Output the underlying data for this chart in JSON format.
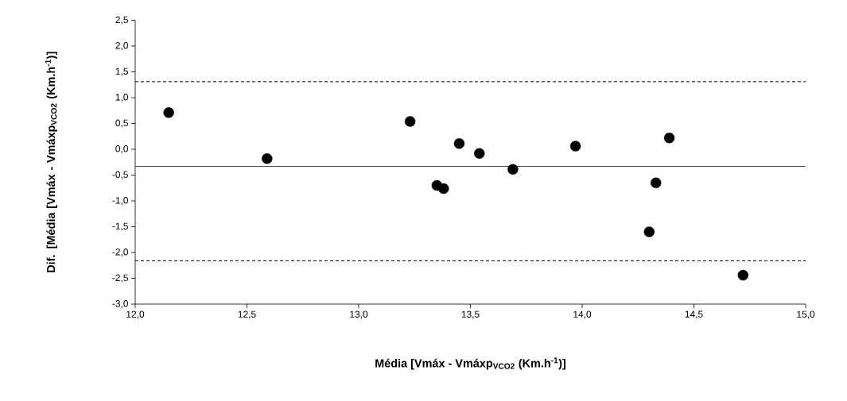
{
  "chart_data": {
    "type": "scatter",
    "xlabel": "Média [Vmáx - Vmáxp$_{VCO2}$ (Km.h$^{-1}$)]",
    "ylabel": "Dif. [Média [Vmáx - Vmáxp$_{VCO2}$ (Km.h$^{-1}$)]",
    "x": [
      12.15,
      12.59,
      13.23,
      13.35,
      13.38,
      13.45,
      13.54,
      13.69,
      13.97,
      14.3,
      14.33,
      14.39,
      14.72
    ],
    "series": [
      {
        "color": "#000000",
        "values": [
          0.71,
          -0.18,
          0.54,
          -0.7,
          -0.76,
          0.11,
          -0.08,
          -0.39,
          0.06,
          -1.6,
          -0.65,
          0.22,
          -2.44
        ]
      }
    ],
    "marker": "circle",
    "grid": false,
    "xlim": [
      12.0,
      15.0
    ],
    "ylim": [
      -3.0,
      2.5
    ],
    "xticks": [
      {
        "value": 12.0,
        "label": "12,0"
      },
      {
        "value": 12.5,
        "label": "12,5"
      },
      {
        "value": 13.0,
        "label": "13,0"
      },
      {
        "value": 13.5,
        "label": "13,5"
      },
      {
        "value": 14.0,
        "label": "14,0"
      },
      {
        "value": 14.5,
        "label": "14,5"
      },
      {
        "value": 15.0,
        "label": "15,0"
      }
    ],
    "yticks": [
      {
        "value": -3.0,
        "label": "-3,0"
      },
      {
        "value": -2.5,
        "label": "-2,5"
      },
      {
        "value": -2.0,
        "label": "-2,0"
      },
      {
        "value": -1.5,
        "label": "-1,5"
      },
      {
        "value": -1.0,
        "label": "-1,0"
      },
      {
        "value": -0.5,
        "label": "-0,5"
      },
      {
        "value": 0.0,
        "label": "0,0"
      },
      {
        "value": 0.5,
        "label": "0,5"
      },
      {
        "value": 1.0,
        "label": "1,0"
      },
      {
        "value": 1.5,
        "label": "1,5"
      },
      {
        "value": 2.0,
        "label": "2,0"
      },
      {
        "value": 2.5,
        "label": "2,5"
      }
    ],
    "ref_lines": [
      {
        "axis": "y",
        "value": 1.31,
        "line_style": "dashed",
        "color": "#000000"
      },
      {
        "axis": "y",
        "value": -0.33,
        "line_style": "solid",
        "color": "#404040"
      },
      {
        "axis": "y",
        "value": -2.16,
        "line_style": "dashed",
        "color": "#000000"
      }
    ]
  }
}
